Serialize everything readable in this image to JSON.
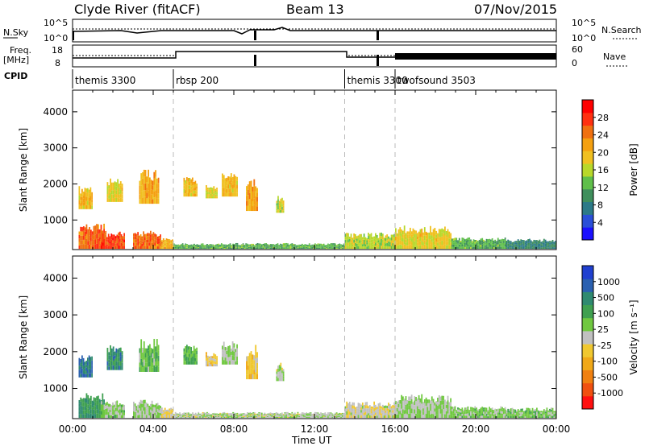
{
  "header": {
    "station": "Clyde River (fitACF)",
    "beam": "Beam 13",
    "date": "07/Nov/2015"
  },
  "top_panels": {
    "nsky_label": "N.Sky",
    "nsky_ticks": [
      "10^5",
      "10^0"
    ],
    "nsearch_label": "N.Search",
    "nsearch_ticks": [
      "10^5",
      "10^0"
    ],
    "freq_label": "Freq.",
    "freq_unit": "[MHz]",
    "freq_ticks": [
      "18",
      "8"
    ],
    "nave_label": "Nave",
    "nave_ticks": [
      "60",
      "0"
    ],
    "cpid_label": "CPID"
  },
  "cpid_segments": [
    {
      "name": "themis 3300",
      "start_hour": 0
    },
    {
      "name": "rbsp 200",
      "start_hour": 5
    },
    {
      "name": "themis 3300",
      "start_hour": 13.5
    },
    {
      "name": "twofsound 3503",
      "start_hour": 16
    }
  ],
  "chart_data": [
    {
      "type": "heatmap",
      "name": "power",
      "ylabel": "Slant Range [km]",
      "yticks": [
        "1000",
        "2000",
        "3000",
        "4000"
      ],
      "ylim": [
        180,
        4600
      ],
      "xlim": [
        0,
        24
      ],
      "colorbar": {
        "label": "Power [dB]",
        "ticks": [
          "4",
          "8",
          "12",
          "16",
          "20",
          "24",
          "28"
        ],
        "range": [
          0,
          32
        ],
        "colors": [
          "#1a10ff",
          "#2a4fd8",
          "#2c7a88",
          "#3f8f5c",
          "#5fbf4a",
          "#b8d82a",
          "#f0c020",
          "#f4a010",
          "#f07010",
          "#ff3010",
          "#ff0000"
        ]
      },
      "echo_regions": [
        {
          "t0": 0.3,
          "t1": 1.6,
          "r0": 200,
          "r1": 900,
          "level": 26
        },
        {
          "t0": 1.4,
          "t1": 2.6,
          "r0": 200,
          "r1": 700,
          "level": 28
        },
        {
          "t0": 3.0,
          "t1": 4.4,
          "r0": 200,
          "r1": 700,
          "level": 26
        },
        {
          "t0": 4.4,
          "t1": 5.0,
          "r0": 200,
          "r1": 500,
          "level": 22
        },
        {
          "t0": 0.3,
          "t1": 1.0,
          "r0": 1300,
          "r1": 1950,
          "level": 20
        },
        {
          "t0": 1.7,
          "t1": 2.5,
          "r0": 1500,
          "r1": 2200,
          "level": 18
        },
        {
          "t0": 3.3,
          "t1": 4.3,
          "r0": 1450,
          "r1": 2400,
          "level": 22
        },
        {
          "t0": 5.5,
          "t1": 6.2,
          "r0": 1650,
          "r1": 2200,
          "level": 20
        },
        {
          "t0": 6.6,
          "t1": 7.2,
          "r0": 1600,
          "r1": 2000,
          "level": 18
        },
        {
          "t0": 7.4,
          "t1": 8.2,
          "r0": 1650,
          "r1": 2300,
          "level": 20
        },
        {
          "t0": 8.6,
          "t1": 9.2,
          "r0": 1250,
          "r1": 2200,
          "level": 22
        },
        {
          "t0": 10.1,
          "t1": 10.5,
          "r0": 1200,
          "r1": 1700,
          "level": 16
        },
        {
          "t0": 5.0,
          "t1": 13.5,
          "r0": 200,
          "r1": 360,
          "level": 12
        },
        {
          "t0": 13.5,
          "t1": 16.0,
          "r0": 200,
          "r1": 650,
          "level": 16
        },
        {
          "t0": 16.0,
          "t1": 18.8,
          "r0": 200,
          "r1": 850,
          "level": 18
        },
        {
          "t0": 18.8,
          "t1": 21.5,
          "r0": 200,
          "r1": 520,
          "level": 12
        },
        {
          "t0": 21.5,
          "t1": 24.0,
          "r0": 200,
          "r1": 480,
          "level": 8
        }
      ]
    },
    {
      "type": "heatmap",
      "name": "velocity",
      "ylabel": "Slant Range [km]",
      "yticks": [
        "1000",
        "2000",
        "3000",
        "4000"
      ],
      "ylim": [
        180,
        4600
      ],
      "xlim": [
        0,
        24
      ],
      "xlabel": "Time UT",
      "xticks": [
        "00:00",
        "04:00",
        "08:00",
        "12:00",
        "16:00",
        "20:00",
        "00:00"
      ],
      "colorbar": {
        "label": "Velocity [m s⁻¹]",
        "ticks": [
          "-1000",
          "-500",
          "-100",
          "-25",
          "25",
          "100",
          "500",
          "1000"
        ],
        "range": [
          -1250,
          1250
        ],
        "colors": [
          "#ff1010",
          "#f05010",
          "#f08010",
          "#f0a818",
          "#f0c830",
          "#c0c0c0",
          "#70c840",
          "#3fa050",
          "#2f8a70",
          "#2a60b0",
          "#2040d0"
        ]
      },
      "echo_regions": [
        {
          "t0": 0.3,
          "t1": 1.6,
          "r0": 200,
          "r1": 900,
          "level": 600
        },
        {
          "t0": 1.4,
          "t1": 2.6,
          "r0": 200,
          "r1": 700,
          "level": 200
        },
        {
          "t0": 3.0,
          "t1": 4.4,
          "r0": 200,
          "r1": 700,
          "level": 150
        },
        {
          "t0": 4.4,
          "t1": 5.0,
          "r0": 200,
          "r1": 500,
          "level": -150
        },
        {
          "t0": 0.3,
          "t1": 1.0,
          "r0": 1300,
          "r1": 1950,
          "level": 900
        },
        {
          "t0": 1.7,
          "t1": 2.5,
          "r0": 1500,
          "r1": 2200,
          "level": 700
        },
        {
          "t0": 3.3,
          "t1": 4.3,
          "r0": 1450,
          "r1": 2400,
          "level": 300
        },
        {
          "t0": 5.5,
          "t1": 6.2,
          "r0": 1650,
          "r1": 2200,
          "level": 400
        },
        {
          "t0": 6.6,
          "t1": 7.2,
          "r0": 1600,
          "r1": 2000,
          "level": -200
        },
        {
          "t0": 7.4,
          "t1": 8.2,
          "r0": 1650,
          "r1": 2300,
          "level": 150
        },
        {
          "t0": 8.6,
          "t1": 9.2,
          "r0": 1250,
          "r1": 2200,
          "level": -300
        },
        {
          "t0": 10.1,
          "t1": 10.5,
          "r0": 1200,
          "r1": 1700,
          "level": 60
        },
        {
          "t0": 5.0,
          "t1": 13.5,
          "r0": 200,
          "r1": 360,
          "level": 60
        },
        {
          "t0": 13.5,
          "t1": 16.0,
          "r0": 200,
          "r1": 650,
          "level": -60
        },
        {
          "t0": 16.0,
          "t1": 18.8,
          "r0": 200,
          "r1": 850,
          "level": 120
        },
        {
          "t0": 18.8,
          "t1": 21.5,
          "r0": 200,
          "r1": 520,
          "level": 200
        },
        {
          "t0": 21.5,
          "t1": 24.0,
          "r0": 200,
          "r1": 480,
          "level": 250
        }
      ]
    }
  ]
}
